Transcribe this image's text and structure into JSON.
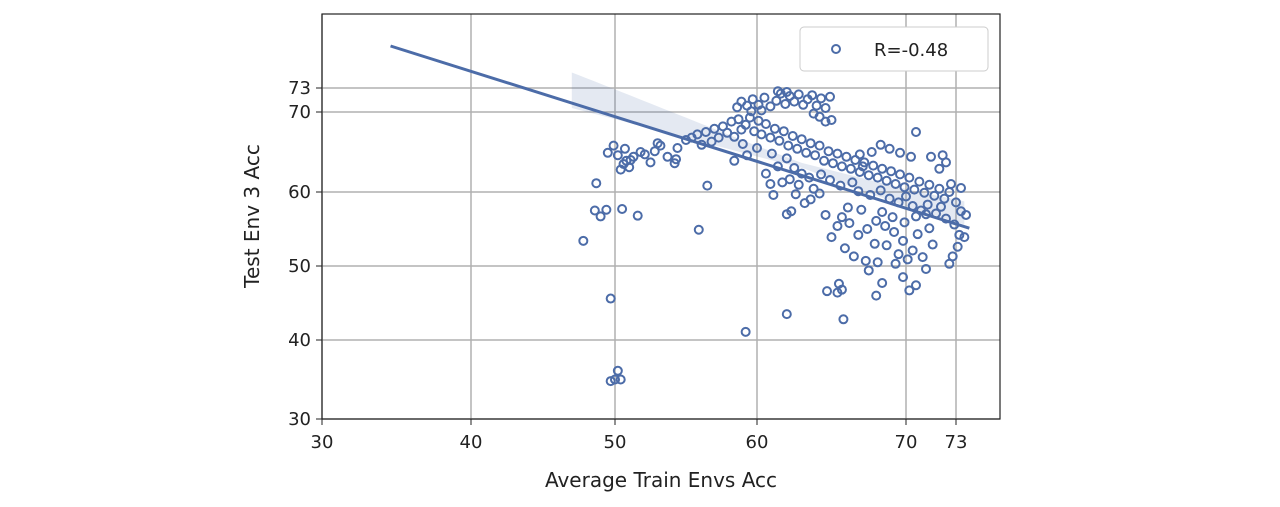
{
  "chart_data": {
    "type": "scatter",
    "title": "",
    "xlabel": "Average Train Envs Acc",
    "ylabel": "Test Env 3 Acc",
    "xticks": [
      30,
      40,
      50,
      60,
      70,
      73
    ],
    "yticks": [
      30,
      40,
      50,
      60,
      70,
      73
    ],
    "xlim": [
      30,
      76
    ],
    "ylim": [
      30,
      82
    ],
    "grid": true,
    "legend": {
      "placement": "top-right",
      "entries": [
        "R=-0.48"
      ]
    },
    "marker_color": "#4c6ca8",
    "regression": {
      "x": [
        34.6,
        73.8
      ],
      "y": [
        80.0,
        57.0
      ],
      "ci": true
    },
    "series": [
      {
        "name": "R=-0.48",
        "points": [
          [
            47.8,
            53.4
          ],
          [
            48.7,
            61.1
          ],
          [
            48.6,
            57.5
          ],
          [
            49.0,
            56.7
          ],
          [
            49.4,
            57.6
          ],
          [
            49.7,
            45.6
          ],
          [
            49.7,
            34.8
          ],
          [
            50.0,
            35.0
          ],
          [
            50.2,
            36.1
          ],
          [
            50.4,
            35.0
          ],
          [
            50.5,
            57.7
          ],
          [
            51.6,
            56.8
          ],
          [
            55.9,
            54.9
          ],
          [
            56.5,
            60.8
          ],
          [
            59.2,
            41.1
          ],
          [
            62.0,
            43.5
          ],
          [
            65.4,
            46.4
          ],
          [
            65.8,
            42.8
          ],
          [
            65.5,
            47.6
          ],
          [
            65.7,
            46.8
          ],
          [
            68.0,
            46.0
          ],
          [
            68.4,
            47.7
          ],
          [
            64.7,
            46.6
          ],
          [
            69.8,
            48.5
          ],
          [
            70.6,
            47.4
          ],
          [
            71.2,
            49.6
          ],
          [
            69.3,
            50.3
          ],
          [
            67.5,
            49.4
          ],
          [
            70.2,
            46.7
          ],
          [
            49.5,
            64.9
          ],
          [
            49.9,
            65.8
          ],
          [
            50.2,
            64.6
          ],
          [
            50.7,
            65.4
          ],
          [
            50.8,
            63.9
          ],
          [
            51.0,
            63.1
          ],
          [
            51.3,
            64.4
          ],
          [
            51.8,
            65.0
          ],
          [
            52.1,
            64.7
          ],
          [
            52.5,
            63.7
          ],
          [
            53.0,
            66.1
          ],
          [
            53.2,
            65.8
          ],
          [
            53.7,
            64.4
          ],
          [
            54.2,
            63.6
          ],
          [
            54.4,
            65.5
          ],
          [
            54.3,
            64.1
          ],
          [
            50.4,
            62.8
          ],
          [
            50.6,
            63.5
          ],
          [
            51.1,
            64.0
          ],
          [
            52.8,
            65.1
          ],
          [
            55.0,
            66.5
          ],
          [
            55.4,
            66.8
          ],
          [
            55.8,
            67.2
          ],
          [
            56.1,
            65.9
          ],
          [
            56.4,
            67.5
          ],
          [
            56.8,
            66.3
          ],
          [
            57.0,
            67.9
          ],
          [
            57.3,
            66.8
          ],
          [
            57.6,
            68.2
          ],
          [
            57.9,
            67.4
          ],
          [
            58.2,
            68.8
          ],
          [
            58.4,
            66.9
          ],
          [
            58.7,
            69.1
          ],
          [
            58.9,
            67.8
          ],
          [
            59.2,
            68.4
          ],
          [
            59.5,
            69.3
          ],
          [
            59.8,
            67.6
          ],
          [
            60.1,
            68.9
          ],
          [
            60.3,
            67.2
          ],
          [
            60.6,
            68.5
          ],
          [
            60.9,
            66.8
          ],
          [
            61.2,
            67.9
          ],
          [
            61.5,
            66.4
          ],
          [
            61.8,
            67.6
          ],
          [
            62.1,
            65.8
          ],
          [
            62.4,
            67.0
          ],
          [
            62.7,
            65.4
          ],
          [
            63.0,
            66.6
          ],
          [
            63.3,
            64.9
          ],
          [
            63.6,
            66.1
          ],
          [
            63.9,
            64.6
          ],
          [
            64.2,
            65.8
          ],
          [
            64.5,
            63.9
          ],
          [
            64.8,
            65.1
          ],
          [
            65.1,
            63.6
          ],
          [
            65.4,
            64.8
          ],
          [
            65.7,
            63.2
          ],
          [
            66.0,
            64.4
          ],
          [
            66.3,
            62.9
          ],
          [
            66.6,
            64.0
          ],
          [
            66.9,
            62.5
          ],
          [
            67.2,
            63.7
          ],
          [
            67.5,
            62.1
          ],
          [
            67.8,
            63.3
          ],
          [
            68.1,
            61.8
          ],
          [
            68.4,
            62.9
          ],
          [
            68.7,
            61.4
          ],
          [
            69.0,
            62.6
          ],
          [
            69.3,
            61.0
          ],
          [
            69.6,
            62.2
          ],
          [
            69.9,
            60.6
          ],
          [
            70.2,
            61.8
          ],
          [
            70.5,
            60.3
          ],
          [
            70.8,
            61.3
          ],
          [
            71.1,
            59.9
          ],
          [
            71.4,
            60.9
          ],
          [
            71.7,
            59.5
          ],
          [
            72.0,
            60.4
          ],
          [
            72.3,
            59.1
          ],
          [
            72.6,
            60.0
          ],
          [
            73.0,
            58.6
          ],
          [
            73.3,
            57.4
          ],
          [
            73.6,
            56.9
          ],
          [
            59.0,
            66.0
          ],
          [
            60.0,
            65.5
          ],
          [
            61.0,
            64.8
          ],
          [
            62.0,
            64.2
          ],
          [
            62.5,
            63.0
          ],
          [
            63.0,
            62.3
          ],
          [
            63.5,
            61.8
          ],
          [
            61.4,
            63.2
          ],
          [
            62.2,
            61.6
          ],
          [
            62.8,
            60.9
          ],
          [
            63.8,
            60.4
          ],
          [
            64.3,
            62.2
          ],
          [
            64.9,
            61.5
          ],
          [
            65.6,
            60.8
          ],
          [
            66.4,
            61.2
          ],
          [
            66.8,
            60.1
          ],
          [
            67.6,
            59.6
          ],
          [
            68.3,
            60.2
          ],
          [
            68.9,
            59.1
          ],
          [
            69.5,
            58.6
          ],
          [
            70.0,
            59.4
          ],
          [
            70.4,
            58.1
          ],
          [
            70.9,
            57.5
          ],
          [
            71.3,
            58.3
          ],
          [
            71.8,
            57.1
          ],
          [
            72.4,
            56.4
          ],
          [
            72.9,
            55.6
          ],
          [
            73.2,
            54.2
          ],
          [
            73.5,
            53.9
          ],
          [
            73.1,
            52.6
          ],
          [
            72.6,
            50.3
          ],
          [
            72.8,
            51.3
          ],
          [
            71.6,
            52.9
          ],
          [
            71.0,
            51.2
          ],
          [
            70.4,
            52.1
          ],
          [
            69.8,
            53.4
          ],
          [
            69.2,
            54.6
          ],
          [
            68.6,
            55.4
          ],
          [
            68.0,
            56.1
          ],
          [
            67.4,
            55.0
          ],
          [
            66.8,
            54.2
          ],
          [
            66.2,
            55.8
          ],
          [
            65.7,
            56.6
          ],
          [
            65.4,
            55.4
          ],
          [
            65.0,
            53.9
          ],
          [
            65.9,
            52.4
          ],
          [
            66.5,
            51.3
          ],
          [
            67.3,
            50.7
          ],
          [
            68.1,
            50.5
          ],
          [
            68.7,
            52.8
          ],
          [
            69.5,
            51.6
          ],
          [
            70.1,
            50.9
          ],
          [
            70.7,
            54.3
          ],
          [
            71.4,
            55.1
          ],
          [
            67.9,
            53.0
          ],
          [
            67.0,
            57.6
          ],
          [
            66.1,
            57.9
          ],
          [
            68.4,
            57.3
          ],
          [
            69.1,
            56.6
          ],
          [
            69.9,
            55.9
          ],
          [
            70.6,
            56.7
          ],
          [
            71.2,
            57.0
          ],
          [
            72.1,
            58.0
          ],
          [
            62.0,
            57.0
          ],
          [
            62.3,
            57.4
          ],
          [
            63.2,
            58.5
          ],
          [
            63.6,
            59.0
          ],
          [
            64.2,
            59.8
          ],
          [
            64.6,
            56.9
          ],
          [
            61.7,
            61.2
          ],
          [
            62.6,
            59.7
          ],
          [
            60.6,
            62.3
          ],
          [
            58.4,
            63.9
          ],
          [
            59.3,
            64.6
          ],
          [
            60.9,
            61.0
          ],
          [
            61.1,
            59.6
          ],
          [
            58.6,
            70.6
          ],
          [
            58.9,
            71.3
          ],
          [
            59.3,
            70.8
          ],
          [
            59.7,
            71.6
          ],
          [
            60.1,
            70.9
          ],
          [
            60.5,
            71.8
          ],
          [
            60.9,
            70.7
          ],
          [
            61.3,
            71.4
          ],
          [
            61.6,
            72.3
          ],
          [
            61.9,
            71.0
          ],
          [
            62.2,
            72.0
          ],
          [
            62.5,
            71.3
          ],
          [
            62.8,
            72.2
          ],
          [
            63.1,
            70.9
          ],
          [
            63.4,
            71.6
          ],
          [
            63.7,
            72.1
          ],
          [
            64.0,
            70.8
          ],
          [
            64.3,
            71.7
          ],
          [
            64.6,
            70.5
          ],
          [
            64.9,
            71.9
          ],
          [
            64.2,
            69.4
          ],
          [
            64.6,
            68.8
          ],
          [
            65.0,
            69.0
          ],
          [
            63.8,
            69.8
          ],
          [
            61.4,
            72.6
          ],
          [
            62.0,
            72.5
          ],
          [
            60.3,
            70.2
          ],
          [
            59.6,
            70.1
          ],
          [
            70.6,
            67.5
          ],
          [
            71.5,
            64.4
          ],
          [
            72.2,
            64.6
          ],
          [
            72.4,
            63.7
          ],
          [
            72.0,
            62.9
          ],
          [
            73.3,
            60.5
          ],
          [
            72.7,
            61.0
          ],
          [
            68.3,
            65.9
          ],
          [
            68.9,
            65.4
          ],
          [
            69.6,
            64.9
          ],
          [
            70.3,
            64.4
          ],
          [
            67.7,
            65.0
          ],
          [
            66.9,
            64.7
          ],
          [
            67.1,
            63.2
          ]
        ]
      }
    ]
  }
}
